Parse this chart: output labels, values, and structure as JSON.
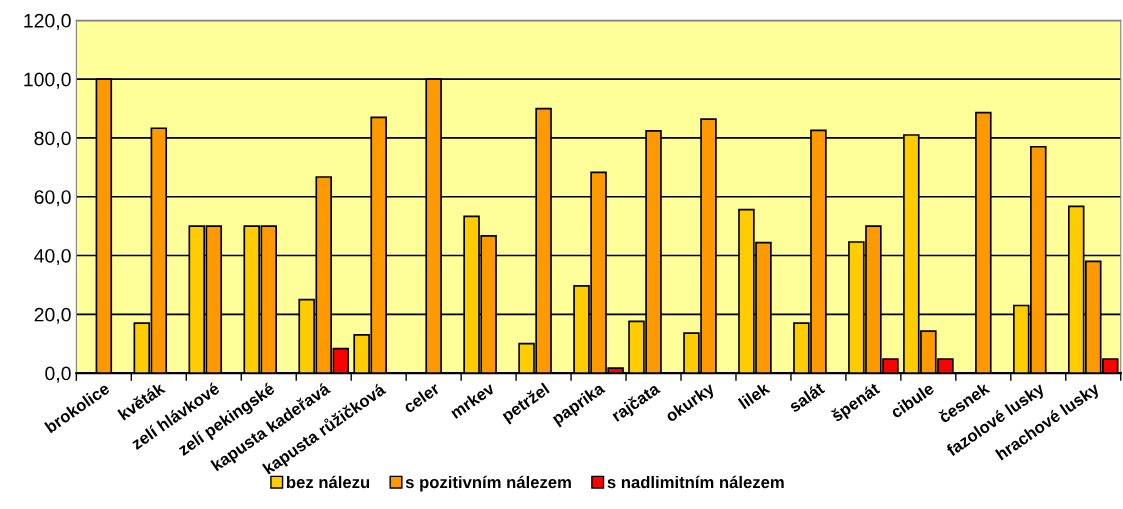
{
  "chart_data": {
    "type": "bar",
    "categories": [
      "brokolice",
      "květák",
      "zelí hlávkové",
      "zelí pekingské",
      "kapusta kadeřavá",
      "kapusta růžičková",
      "celer",
      "mrkev",
      "petržel",
      "paprika",
      "rajčata",
      "okurky",
      "lilek",
      "salát",
      "špenát",
      "cibule",
      "česnek",
      "fazolové lusky",
      "hrachové lusky"
    ],
    "series": [
      {
        "name": "bez nálezu",
        "color": "#ffcc00",
        "values": [
          null,
          17,
          50,
          50,
          25,
          13,
          null,
          53.3,
          10,
          29.7,
          17.6,
          13.6,
          55.6,
          17,
          44.6,
          81,
          null,
          23,
          56.7
        ]
      },
      {
        "name": "s pozitivním nálezem",
        "color": "#ff9900",
        "values": [
          100,
          83.3,
          50,
          50,
          66.7,
          87,
          100,
          46.7,
          90,
          68.3,
          82.4,
          86.4,
          44.4,
          82.6,
          50,
          14.3,
          88.6,
          77,
          38
        ]
      },
      {
        "name": "s nadlimitním nálezem",
        "color": "#ff0000",
        "values": [
          null,
          null,
          null,
          null,
          8.3,
          null,
          null,
          null,
          null,
          1.7,
          null,
          null,
          null,
          null,
          4.8,
          4.8,
          null,
          null,
          4.8
        ]
      }
    ],
    "ylim": [
      0,
      120
    ],
    "yticks": [
      {
        "value": 0,
        "label": "0,0"
      },
      {
        "value": 20,
        "label": "20,0"
      },
      {
        "value": 40,
        "label": "40,0"
      },
      {
        "value": 60,
        "label": "60,0"
      },
      {
        "value": 80,
        "label": "80,0"
      },
      {
        "value": 100,
        "label": "100,0"
      },
      {
        "value": 120,
        "label": "120,0"
      }
    ],
    "grid": "y",
    "legend": "bottom"
  }
}
